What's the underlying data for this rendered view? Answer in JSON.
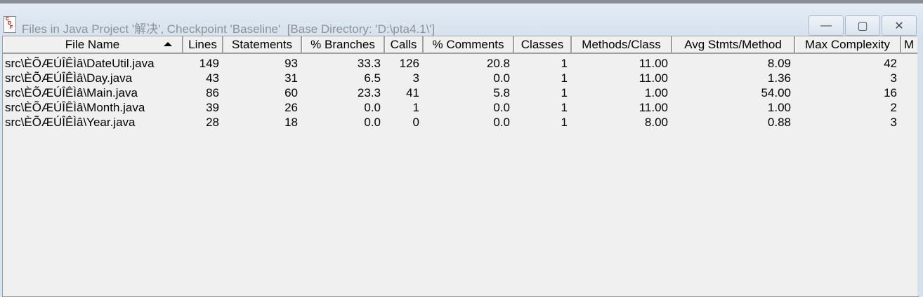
{
  "window": {
    "title": "Files in Java Project '解决', Checkpoint 'Baseline'  [Base Directory: 'D:\\pta4.1\\']",
    "minimize": "—",
    "maximize": "▢",
    "close": "✕"
  },
  "columns": [
    "File Name",
    "Lines",
    "Statements",
    "% Branches",
    "Calls",
    "% Comments",
    "Classes",
    "Methods/Class",
    "Avg Stmts/Method",
    "Max Complexity",
    "M"
  ],
  "sorted_column": "File Name",
  "rows": [
    [
      "src\\ÈÕÆÚÎÊÌâ\\DateUtil.java",
      "149",
      "93",
      "33.3",
      "126",
      "20.8",
      "1",
      "11.00",
      "8.09",
      "42"
    ],
    [
      "src\\ÈÕÆÚÎÊÌâ\\Day.java",
      "43",
      "31",
      "6.5",
      "3",
      "0.0",
      "1",
      "11.00",
      "1.36",
      "3"
    ],
    [
      "src\\ÈÕÆÚÎÊÌâ\\Main.java",
      "86",
      "60",
      "23.3",
      "41",
      "5.8",
      "1",
      "1.00",
      "54.00",
      "16"
    ],
    [
      "src\\ÈÕÆÚÎÊÌâ\\Month.java",
      "39",
      "26",
      "0.0",
      "1",
      "0.0",
      "1",
      "11.00",
      "1.00",
      "2"
    ],
    [
      "src\\ÈÕÆÚÎÊÌâ\\Year.java",
      "28",
      "18",
      "0.0",
      "0",
      "0.0",
      "1",
      "8.00",
      "0.88",
      "3"
    ]
  ]
}
